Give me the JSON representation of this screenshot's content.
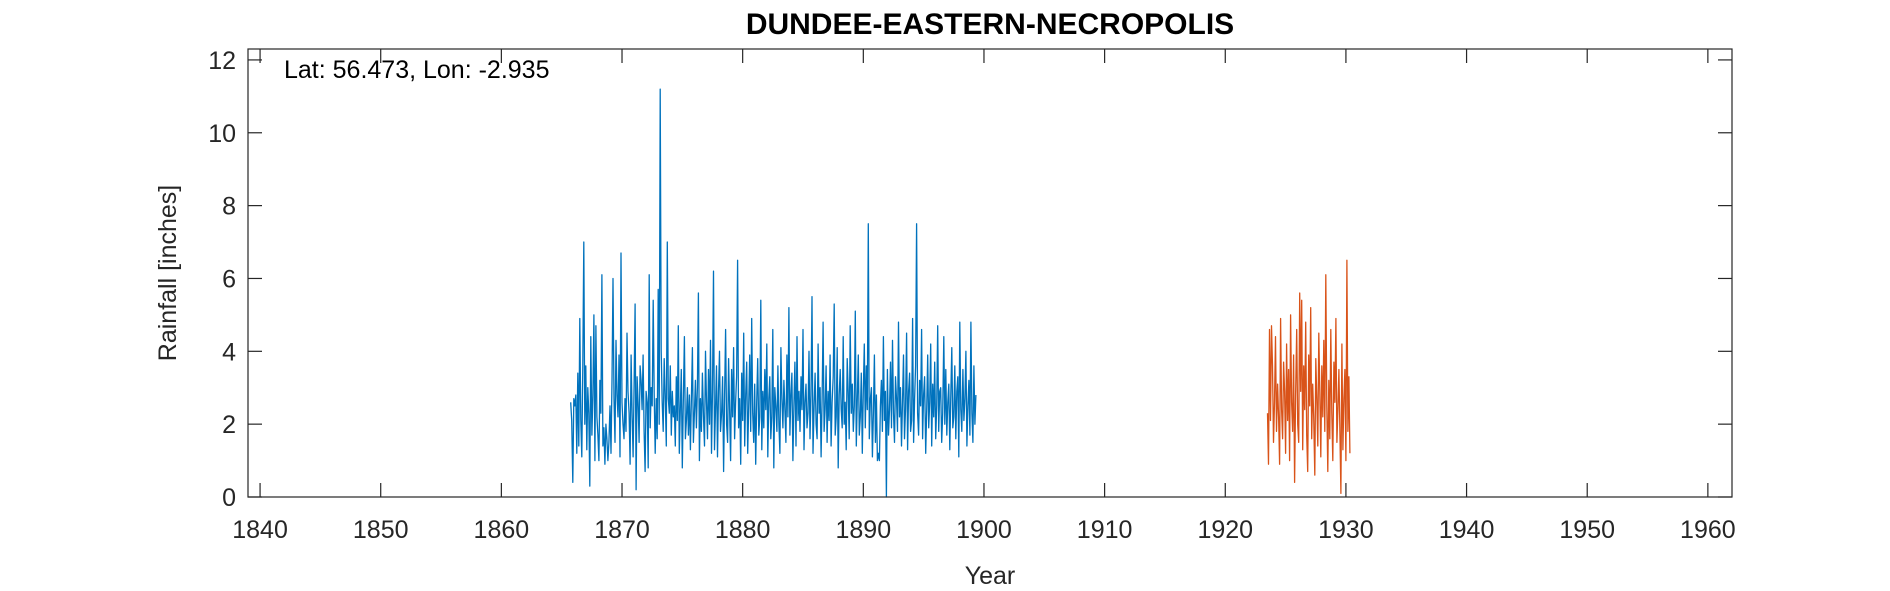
{
  "chart_data": {
    "type": "line",
    "title": "DUNDEE-EASTERN-NECROPOLIS",
    "annotation": "Lat: 56.473, Lon: -2.935",
    "xlabel": "Year",
    "ylabel": "Rainfall [inches]",
    "xlim": [
      1839,
      1962
    ],
    "ylim": [
      0,
      12.3
    ],
    "xticks": [
      1840,
      1850,
      1860,
      1870,
      1880,
      1890,
      1900,
      1910,
      1920,
      1930,
      1940,
      1950,
      1960
    ],
    "yticks": [
      0,
      2,
      4,
      6,
      8,
      10,
      12
    ],
    "grid": false,
    "series": [
      {
        "color": "#0072BD",
        "x_start": 1865.75,
        "x_step": 0.0833333,
        "values": [
          2.6,
          2.1,
          0.4,
          2.7,
          2.5,
          2.8,
          1.2,
          3.4,
          1.4,
          4.9,
          2.1,
          1.1,
          3.6,
          7.0,
          2.0,
          3.6,
          1.3,
          3.0,
          2.3,
          0.3,
          4.4,
          1.7,
          2.8,
          5.0,
          1.0,
          4.7,
          2.2,
          1.7,
          1.0,
          3.2,
          2.3,
          6.1,
          1.4,
          1.9,
          0.9,
          2.0,
          1.6,
          1.0,
          1.5,
          2.5,
          1.2,
          3.2,
          6.0,
          2.7,
          1.5,
          4.3,
          2.8,
          2.2,
          3.9,
          1.1,
          6.7,
          2.6,
          2.0,
          1.6,
          2.7,
          1.8,
          4.5,
          2.9,
          2.3,
          0.9,
          3.9,
          2.3,
          1.1,
          3.1,
          5.3,
          0.2,
          3.3,
          2.6,
          1.5,
          3.6,
          3.2,
          2.4,
          3.9,
          1.8,
          0.7,
          2.9,
          2.6,
          0.8,
          6.1,
          1.9,
          3.0,
          2.5,
          5.4,
          2.8,
          1.2,
          2.7,
          1.6,
          5.7,
          2.0,
          11.2,
          4.0,
          2.6,
          1.8,
          3.8,
          2.8,
          1.4,
          7.0,
          2.7,
          2.3,
          3.6,
          1.7,
          2.9,
          2.2,
          2.5,
          1.4,
          3.3,
          2.1,
          4.7,
          1.2,
          2.4,
          3.5,
          0.8,
          2.6,
          4.4,
          1.6,
          2.1,
          3.0,
          1.7,
          2.8,
          1.3,
          2.7,
          4.1,
          1.5,
          2.3,
          3.2,
          1.9,
          3.0,
          5.6,
          1.0,
          2.7,
          1.8,
          3.4,
          2.2,
          1.4,
          4.0,
          2.6,
          1.6,
          3.5,
          2.0,
          4.3,
          1.2,
          2.9,
          6.2,
          1.3,
          2.4,
          3.6,
          1.1,
          2.9,
          4.0,
          1.8,
          2.3,
          3.3,
          0.7,
          2.8,
          4.6,
          2.0,
          1.5,
          3.8,
          2.4,
          1.0,
          3.5,
          2.2,
          4.1,
          1.6,
          2.6,
          3.3,
          6.5,
          1.9,
          2.7,
          0.9,
          3.4,
          2.1,
          4.5,
          1.4,
          2.8,
          3.7,
          1.2,
          2.5,
          3.9,
          1.8,
          4.9,
          2.3,
          1.5,
          3.1,
          0.9,
          2.6,
          3.8,
          1.7,
          2.2,
          5.4,
          1.3,
          2.9,
          1.9,
          3.5,
          2.4,
          4.2,
          1.1,
          2.7,
          3.3,
          1.6,
          2.2,
          4.6,
          0.8,
          3.0,
          2.5,
          1.8,
          3.6,
          2.0,
          1.2,
          4.1,
          2.7,
          1.9,
          3.2,
          2.4,
          1.5,
          3.9,
          2.2,
          5.2,
          1.7,
          2.8,
          3.4,
          1.0,
          2.5,
          3.7,
          1.4,
          4.4,
          2.1,
          2.9,
          1.8,
          3.3,
          2.4,
          4.6,
          1.3,
          2.6,
          3.1,
          1.9,
          2.3,
          4.0,
          1.6,
          2.8,
          5.5,
          1.2,
          2.5,
          3.4,
          2.0,
          1.6,
          4.2,
          2.3,
          3.0,
          1.1,
          2.7,
          4.8,
          1.8,
          2.4,
          3.6,
          1.5,
          2.9,
          2.1,
          3.9,
          1.4,
          2.6,
          3.3,
          5.3,
          1.7,
          2.2,
          4.1,
          0.8,
          2.8,
          3.5,
          2.4,
          1.9,
          4.4,
          2.0,
          2.6,
          1.3,
          3.8,
          2.9,
          1.6,
          4.7,
          2.3,
          3.1,
          1.8,
          2.5,
          5.1,
          1.4,
          2.7,
          3.9,
          1.7,
          2.2,
          3.4,
          1.2,
          2.9,
          4.2,
          1.9,
          3.6,
          2.4,
          7.5,
          1.6,
          2.7,
          3.0,
          1.1,
          2.3,
          3.9,
          1.5,
          2.8,
          1.0,
          1.2,
          1.0,
          2.5,
          3.2,
          1.8,
          4.4,
          2.1,
          2.9,
          0.0,
          3.5,
          1.7,
          2.4,
          3.7,
          1.9,
          4.3,
          2.3,
          1.5,
          3.3,
          2.7,
          1.8,
          4.8,
          2.2,
          3.0,
          1.4,
          2.6,
          3.9,
          1.6,
          2.4,
          4.5,
          1.3,
          2.9,
          3.4,
          1.8,
          2.1,
          4.9,
          1.5,
          2.7,
          3.6,
          7.5,
          2.3,
          1.7,
          3.2,
          2.5,
          4.6,
          1.6,
          2.8,
          3.3,
          1.2,
          2.4,
          3.9,
          1.9,
          2.6,
          4.2,
          1.4,
          3.1,
          2.2,
          3.7,
          1.6,
          2.5,
          4.7,
          1.8,
          2.9,
          3.0,
          1.5,
          2.3,
          4.4,
          2.0,
          3.5,
          1.7,
          2.6,
          3.1,
          1.3,
          2.8,
          4.1,
          1.9,
          2.2,
          3.6,
          1.6,
          2.9,
          3.3,
          1.1,
          4.8,
          2.4,
          1.8,
          3.5,
          2.1,
          2.7,
          4.0,
          1.4,
          2.5,
          3.2,
          1.7,
          4.8,
          2.3,
          1.5,
          3.6,
          2.0,
          2.8
        ]
      },
      {
        "color": "#D95319",
        "x_start": 1923.5,
        "x_step": 0.0833333,
        "values": [
          2.3,
          0.9,
          4.6,
          2.1,
          4.7,
          3.6,
          1.5,
          2.6,
          4.4,
          1.8,
          3.1,
          2.2,
          0.9,
          4.9,
          2.4,
          1.6,
          3.7,
          2.9,
          1.2,
          4.2,
          2.1,
          3.5,
          1.0,
          5.0,
          2.6,
          1.8,
          3.9,
          0.4,
          2.8,
          4.6,
          2.0,
          1.5,
          5.6,
          2.9,
          5.4,
          1.3,
          3.6,
          2.4,
          4.8,
          1.7,
          0.7,
          3.9,
          2.5,
          5.2,
          1.6,
          3.1,
          2.2,
          0.6,
          3.8,
          2.7,
          1.4,
          4.5,
          2.9,
          1.1,
          3.6,
          2.2,
          4.3,
          1.8,
          6.1,
          2.5,
          0.7,
          3.2,
          1.6,
          4.6,
          2.3,
          1.0,
          3.7,
          2.6,
          4.9,
          1.5,
          2.4,
          3.5,
          1.8,
          0.1,
          4.2,
          1.3,
          2.7,
          3.5,
          1.0,
          6.5,
          1.8,
          3.3,
          1.2
        ]
      }
    ]
  }
}
